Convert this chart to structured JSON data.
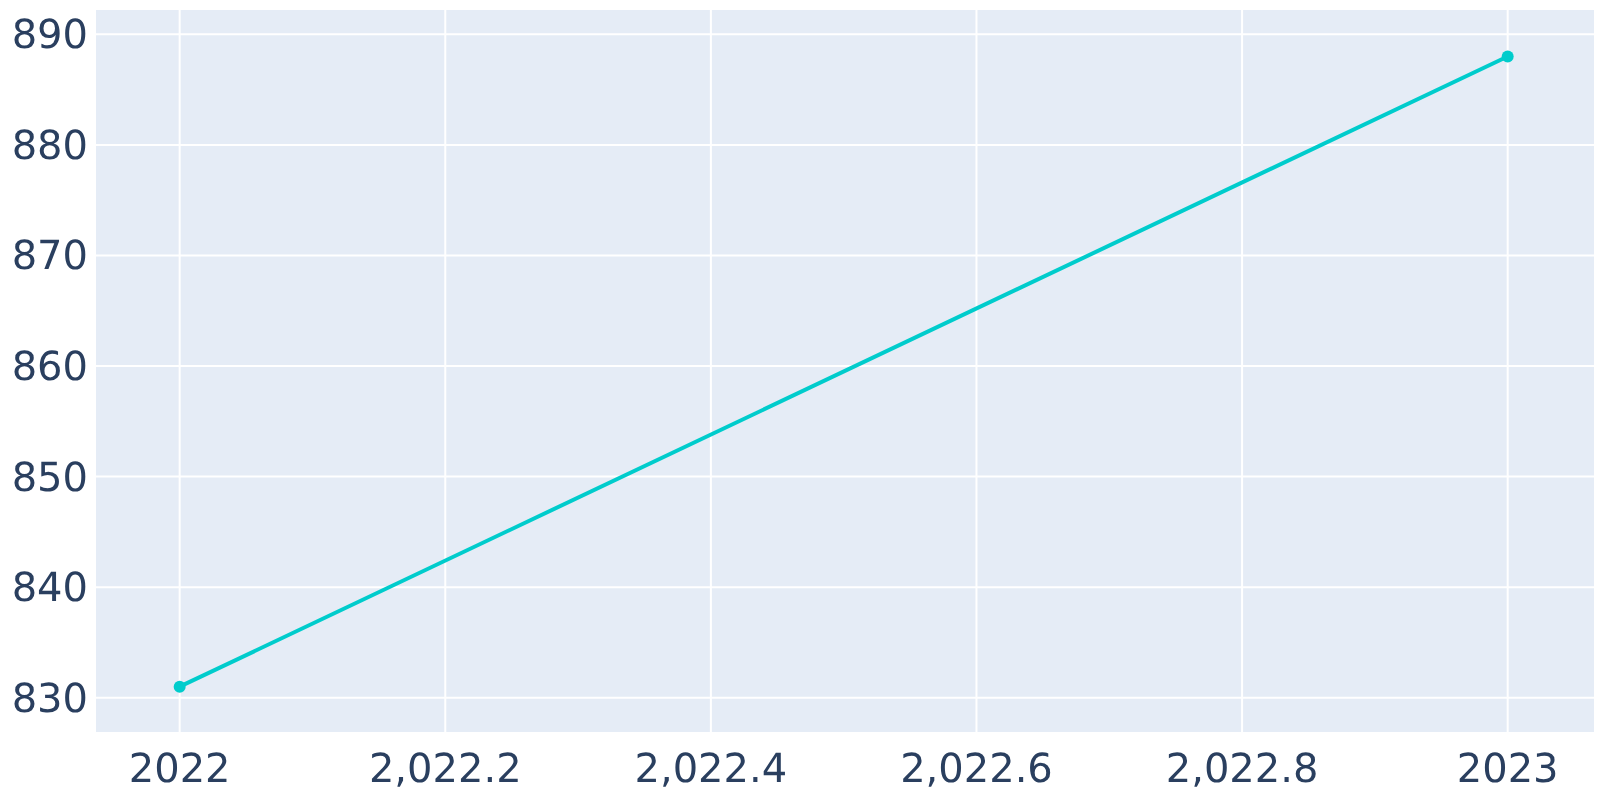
{
  "chart_data": {
    "type": "line",
    "x": [
      2022,
      2023
    ],
    "series": [
      {
        "color": "#00cccc",
        "values": [
          831,
          888
        ]
      }
    ],
    "xlim": [
      2021.937,
      2023.065
    ],
    "xticks": [
      2022,
      {
        "value": 2022.2,
        "label": "2,022.2"
      },
      {
        "value": 2022.4,
        "label": "2,022.4"
      },
      {
        "value": 2022.6,
        "label": "2,022.6"
      },
      {
        "value": 2022.8,
        "label": "2,022.8"
      },
      2023
    ],
    "ylim": [
      826.9,
      892.2
    ],
    "yticks": [
      830,
      840,
      850,
      860,
      870,
      880,
      890
    ],
    "grid": true,
    "marker": "circle",
    "line_style": "solid"
  }
}
